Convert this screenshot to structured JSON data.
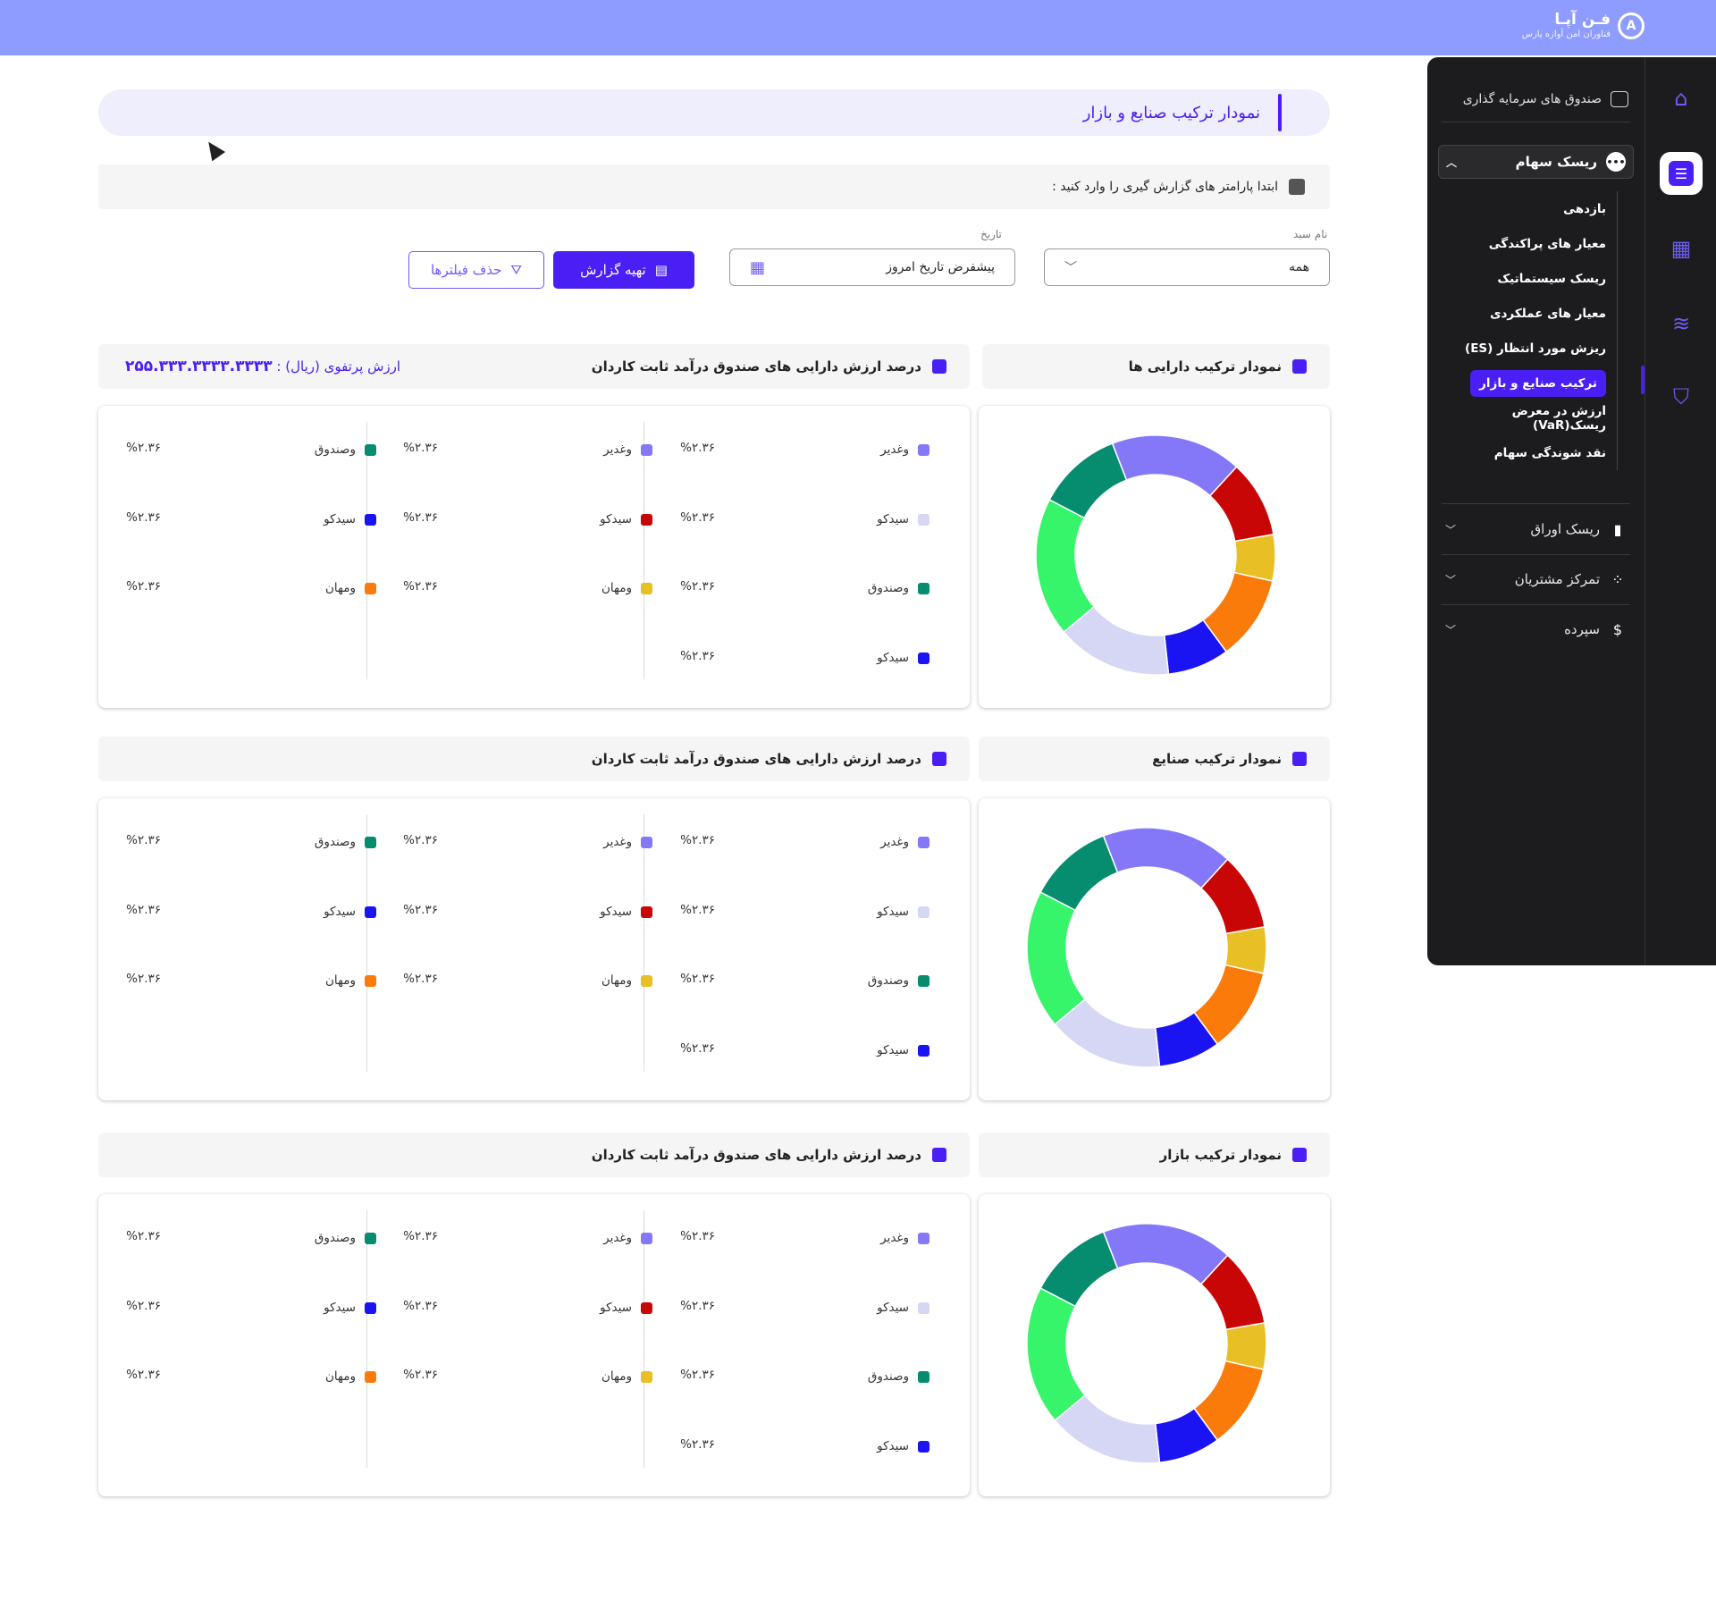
{
  "app": {
    "logo_title": "فـن آپـا",
    "logo_subtitle": "فناوران امن آوازه پارس",
    "logo_mark": "A"
  },
  "sidebar": {
    "header": "صندوق های سرمایه گذاری",
    "open_group": "ریسک سهام",
    "sub_items": [
      {
        "label": "بازدهی"
      },
      {
        "label": "معیار های پراکندگی"
      },
      {
        "label": "ریسک سیستماتیک"
      },
      {
        "label": "معیار های عملکردی"
      },
      {
        "label": "ریزش مورد انتظار (ES)"
      },
      {
        "label": "ترکیب صنایع و بازار"
      },
      {
        "label": "ارزش در معرض ریسک(VaR)"
      },
      {
        "label": "نقد شوندگی سهام"
      }
    ],
    "active_sub": "ترکیب صنایع و بازار",
    "groups": [
      {
        "label": "ریسک اوراق",
        "icon": "bond-icon"
      },
      {
        "label": "تمرکز مشتریان",
        "icon": "customers-icon"
      },
      {
        "label": "سپرده",
        "icon": "dollar-icon"
      }
    ]
  },
  "page": {
    "title": "نمودار ترکیب صنایع و بازار",
    "hint": "ابتدا پارامتر های گزارش گیری را وارد کنید :"
  },
  "filters": {
    "basket_label": "نام سبد",
    "basket_value": "همه",
    "date_label": "تاریخ",
    "date_value": "پیشفرض تاریخ امروز",
    "submit_label": "تهیه گزارش",
    "clear_label": "حذف فیلترها"
  },
  "portfolio": {
    "label": "ارزش پرتفوی (ریال) :",
    "value": "۲۵۵.۳۳۳.۳۳۳۳.۳۳۳۳"
  },
  "sections": [
    {
      "chart_title": "نمودار ترکیب دارایی ها",
      "table_title": "درصد ارزش دارایی های صندوق درآمد ثابت کاردان"
    },
    {
      "chart_title": "نمودار ترکیب صنایع",
      "table_title": "درصد ارزش دارایی های صندوق درآمد ثابت کاردان"
    },
    {
      "chart_title": "نمودار ترکیب بازار",
      "table_title": "درصد ارزش دارایی های صندوق درآمد ثابت کاردان"
    }
  ],
  "legend_columns": [
    [
      {
        "name": "وغدیر",
        "value": "%۲.۳۶",
        "color": "#8478f8"
      },
      {
        "name": "سیدکو",
        "value": "%۲.۳۶",
        "color": "#d6d6f5"
      },
      {
        "name": "وصندوق",
        "value": "%۲.۳۶",
        "color": "#068c6e"
      },
      {
        "name": "سیدکو",
        "value": "%۲.۳۶",
        "color": "#1a14f2"
      }
    ],
    [
      {
        "name": "وغدیر",
        "value": "%۲.۳۶",
        "color": "#8478f8"
      },
      {
        "name": "سیدکو",
        "value": "%۲.۳۶",
        "color": "#c90606"
      },
      {
        "name": "ومهان",
        "value": "%۲.۳۶",
        "color": "#e8bf24"
      }
    ],
    [
      {
        "name": "وصندوق",
        "value": "%۲.۳۶",
        "color": "#068c6e"
      },
      {
        "name": "سیدکو",
        "value": "%۲.۳۶",
        "color": "#1a14f2"
      },
      {
        "name": "ومهان",
        "value": "%۲.۳۶",
        "color": "#fa7b0a"
      }
    ]
  ],
  "chart_data": [
    {
      "type": "pie",
      "title": "نمودار ترکیب دارایی ها",
      "slices": [
        {
          "color": "#8478f8",
          "value": 17
        },
        {
          "color": "#c90606",
          "value": 10
        },
        {
          "color": "#e8bf24",
          "value": 6
        },
        {
          "color": "#fa7b0a",
          "value": 11
        },
        {
          "color": "#1a14f2",
          "value": 8
        },
        {
          "color": "#d6d6f5",
          "value": 15
        },
        {
          "color": "#36f56b",
          "value": 18
        },
        {
          "color": "#068c6e",
          "value": 11
        }
      ]
    },
    {
      "type": "pie",
      "title": "نمودار ترکیب صنایع",
      "slices": [
        {
          "color": "#8478f8",
          "value": 17
        },
        {
          "color": "#c90606",
          "value": 10
        },
        {
          "color": "#e8bf24",
          "value": 6
        },
        {
          "color": "#fa7b0a",
          "value": 11
        },
        {
          "color": "#1a14f2",
          "value": 8
        },
        {
          "color": "#d6d6f5",
          "value": 15
        },
        {
          "color": "#36f56b",
          "value": 18
        },
        {
          "color": "#068c6e",
          "value": 11
        }
      ]
    },
    {
      "type": "pie",
      "title": "نمودار ترکیب بازار",
      "slices": [
        {
          "color": "#8478f8",
          "value": 17
        },
        {
          "color": "#c90606",
          "value": 10
        },
        {
          "color": "#e8bf24",
          "value": 6
        },
        {
          "color": "#fa7b0a",
          "value": 11
        },
        {
          "color": "#1a14f2",
          "value": 8
        },
        {
          "color": "#d6d6f5",
          "value": 15
        },
        {
          "color": "#36f56b",
          "value": 18
        },
        {
          "color": "#068c6e",
          "value": 11
        }
      ]
    }
  ]
}
